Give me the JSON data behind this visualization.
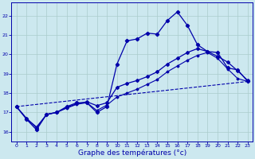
{
  "xlabel": "Graphe des températures (°c)",
  "background_color": "#cce8ef",
  "grid_color": "#aacccc",
  "line_color": "#0000aa",
  "xlim": [
    -0.5,
    23.5
  ],
  "ylim": [
    15.5,
    22.7
  ],
  "yticks": [
    16,
    17,
    18,
    19,
    20,
    21,
    22
  ],
  "xticks": [
    0,
    1,
    2,
    3,
    4,
    5,
    6,
    7,
    8,
    9,
    10,
    11,
    12,
    13,
    14,
    15,
    16,
    17,
    18,
    19,
    20,
    21,
    22,
    23
  ],
  "line1_x": [
    0,
    1,
    2,
    3,
    4,
    5,
    6,
    7,
    8,
    9,
    10,
    11,
    12,
    13,
    14,
    15,
    16,
    17,
    18,
    19,
    20,
    21,
    22,
    23
  ],
  "line1_y": [
    17.3,
    16.65,
    16.1,
    16.9,
    17.0,
    17.3,
    17.5,
    17.5,
    17.0,
    17.3,
    19.5,
    20.7,
    20.8,
    21.1,
    21.05,
    21.75,
    22.2,
    21.5,
    20.5,
    20.15,
    20.1,
    19.3,
    19.2,
    18.6
  ],
  "line2_x": [
    0,
    1,
    2,
    3,
    4,
    5,
    6,
    7,
    8,
    9,
    10,
    11,
    12,
    13,
    14,
    15,
    16,
    17,
    18,
    19,
    20,
    21,
    22,
    23
  ],
  "line2_y": [
    17.3,
    16.7,
    16.2,
    16.9,
    17.0,
    17.25,
    17.45,
    17.55,
    17.35,
    17.5,
    18.3,
    18.5,
    18.65,
    18.85,
    19.1,
    19.5,
    19.8,
    20.1,
    20.3,
    20.15,
    19.9,
    19.6,
    19.15,
    18.65
  ],
  "line3_x": [
    0,
    23
  ],
  "line3_y": [
    17.3,
    18.6
  ],
  "line4_x": [
    0,
    1,
    2,
    3,
    4,
    5,
    6,
    7,
    8,
    9,
    10,
    11,
    12,
    13,
    14,
    15,
    16,
    17,
    18,
    19,
    20,
    21,
    22,
    23
  ],
  "line4_y": [
    17.3,
    16.68,
    16.25,
    16.88,
    17.0,
    17.22,
    17.42,
    17.5,
    17.1,
    17.38,
    17.8,
    18.0,
    18.2,
    18.45,
    18.7,
    19.1,
    19.4,
    19.7,
    19.95,
    20.1,
    19.8,
    19.25,
    18.75,
    18.6
  ]
}
